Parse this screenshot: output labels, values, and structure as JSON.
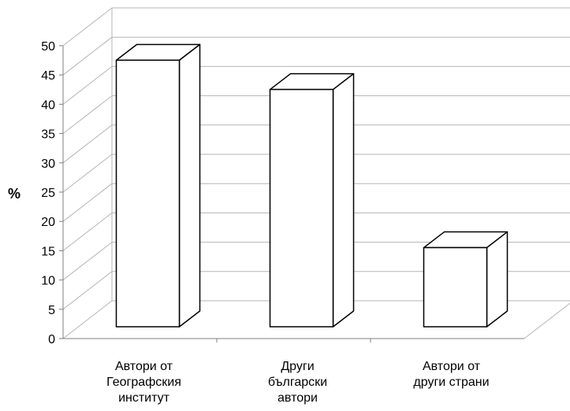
{
  "chart_data": {
    "type": "bar",
    "title": "",
    "xlabel": "",
    "ylabel": "%",
    "ylim": [
      0,
      50
    ],
    "yticks": [
      0,
      5,
      10,
      15,
      20,
      25,
      30,
      35,
      40,
      45,
      50
    ],
    "grid": true,
    "legend": "none",
    "three_d": true,
    "categories": [
      [
        "Автори от",
        "Географския",
        "институт"
      ],
      [
        "Други",
        "български",
        "автори"
      ],
      [
        "Автори от",
        "други страни"
      ]
    ],
    "values": [
      45.5,
      40.5,
      13.5
    ],
    "bar_color": "#ffffff",
    "outline_color": "#000000",
    "grid_color": "#b5b5b5"
  }
}
